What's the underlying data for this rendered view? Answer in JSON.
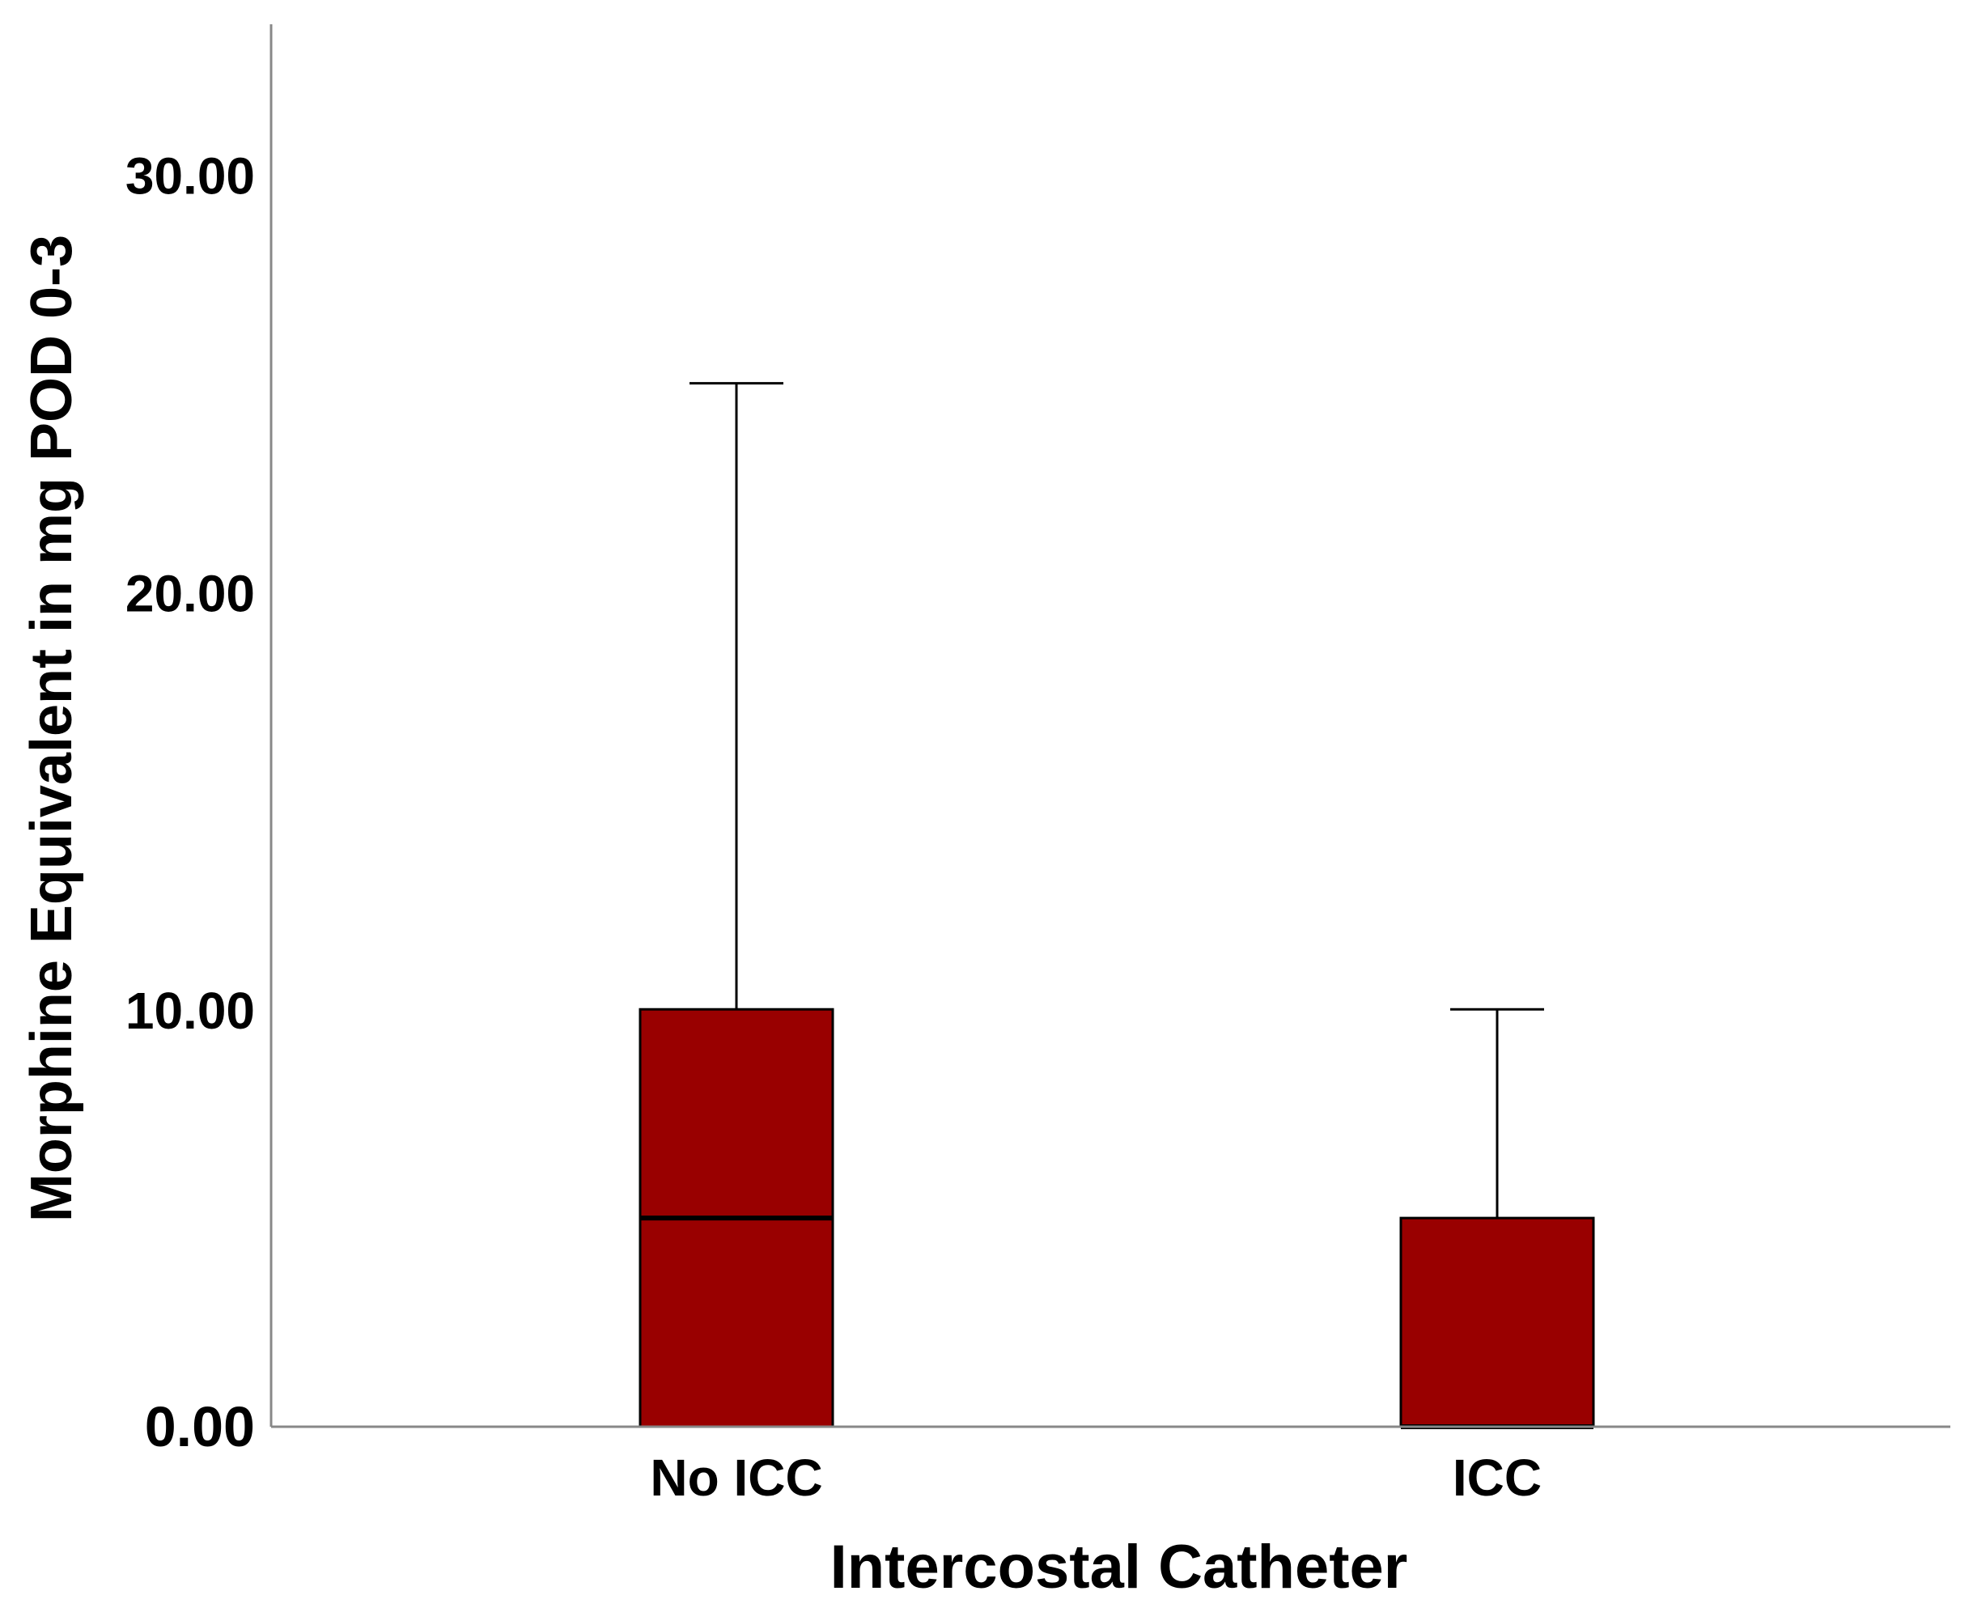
{
  "chart_data": {
    "type": "boxplot",
    "xlabel": "Intercostal Catheter",
    "ylabel": "Morphine Equivalent in mg POD 0-3",
    "ylim": [
      0,
      33.6
    ],
    "yticks": [
      "0.00",
      "10.00",
      "20.00",
      "30.00"
    ],
    "ytick_values": [
      0,
      10,
      20,
      30
    ],
    "categories": [
      "No ICC",
      "ICC"
    ],
    "boxes": [
      {
        "category": "No ICC",
        "min": 0,
        "q1": 0,
        "median": 5,
        "q3": 10,
        "max": 25
      },
      {
        "category": "ICC",
        "min": 0,
        "q1": 0,
        "median": 0,
        "q3": 5,
        "max": 10
      }
    ],
    "box_color": "#990000",
    "grid": false
  }
}
